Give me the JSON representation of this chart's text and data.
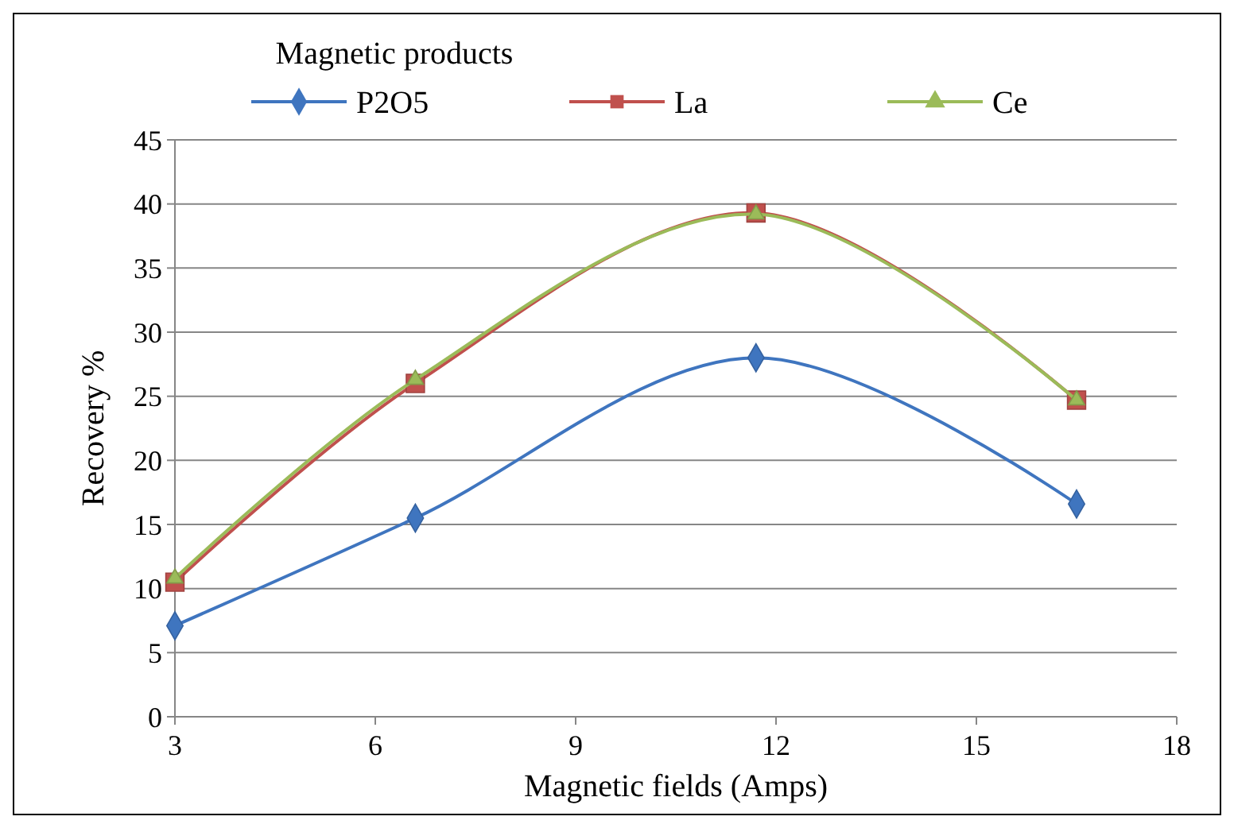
{
  "chart_data": {
    "type": "line",
    "xlabel": "Magnetic fields (Amps)",
    "ylabel": "Recovery %",
    "legend_title": "Magnetic products",
    "x": [
      3,
      6.6,
      11.7,
      16.5
    ],
    "xlim": [
      3,
      18
    ],
    "xticks": [
      3,
      6,
      9,
      12,
      15,
      18
    ],
    "ylim": [
      0,
      45
    ],
    "yticks": [
      0,
      5,
      10,
      15,
      20,
      25,
      30,
      35,
      40,
      45
    ],
    "grid": "y",
    "legend": "top",
    "series": [
      {
        "name": "P2O5",
        "color": "#3f75bf",
        "marker": "diamond",
        "values": [
          7.1,
          15.5,
          28,
          16.6
        ]
      },
      {
        "name": "La",
        "color": "#c0504d",
        "marker": "square",
        "values": [
          10.5,
          26,
          39.3,
          24.7
        ]
      },
      {
        "name": "Ce",
        "color": "#9bbb59",
        "marker": "triangle",
        "values": [
          10.8,
          26.3,
          39.2,
          24.7
        ]
      }
    ]
  }
}
